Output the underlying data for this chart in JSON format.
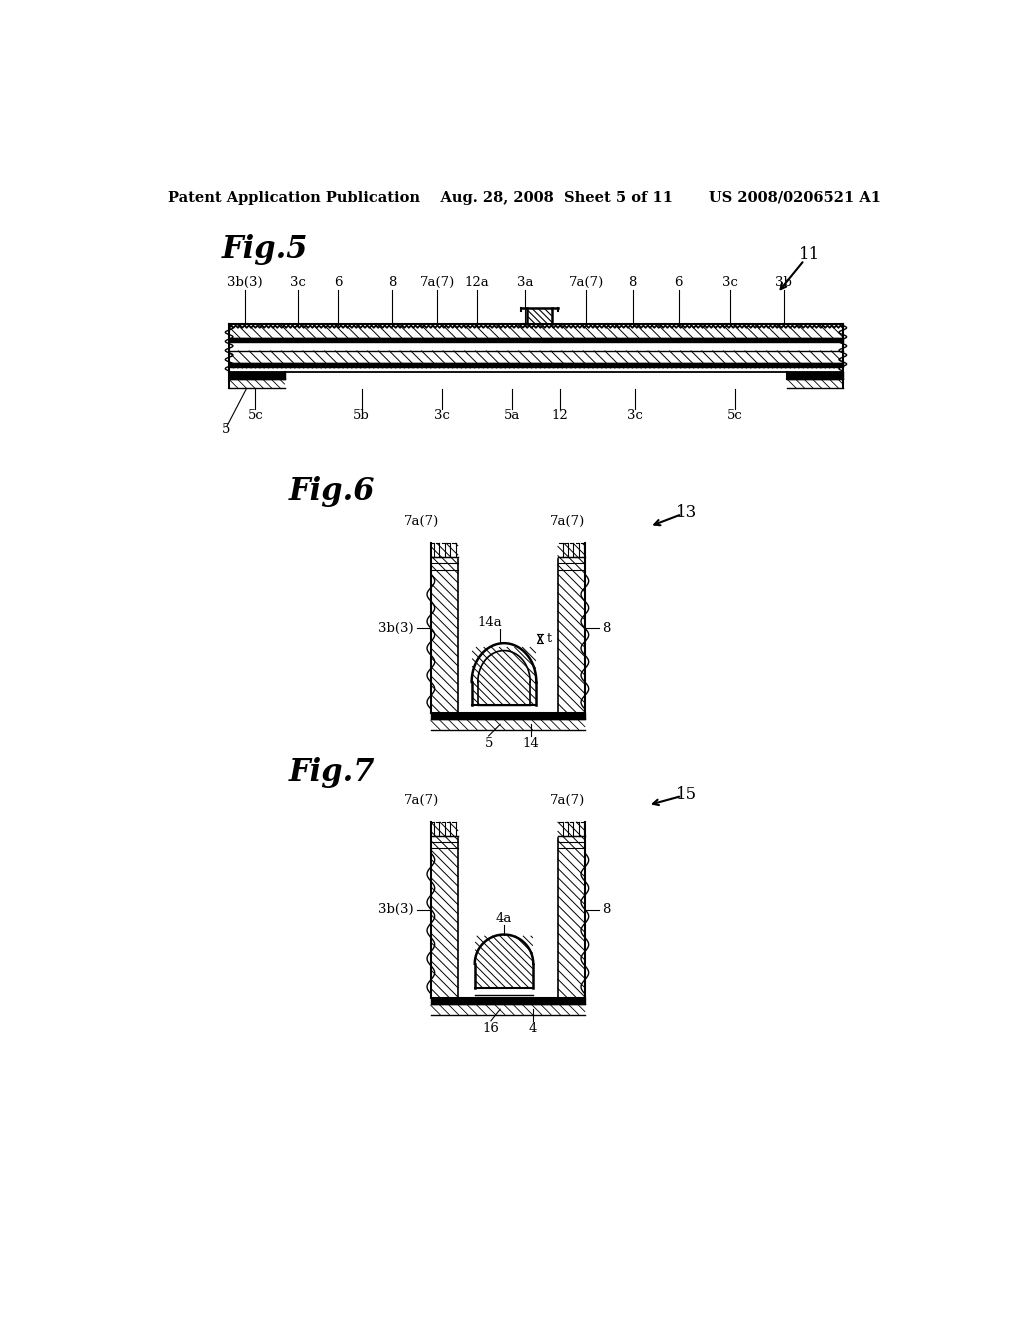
{
  "bg_color": "#ffffff",
  "header": "Patent Application Publication    Aug. 28, 2008  Sheet 5 of 11       US 2008/0206521 A1",
  "fig5_label": "Fig.5",
  "fig6_label": "Fig.6",
  "fig7_label": "Fig.7",
  "fig5_ref": "11",
  "fig6_ref": "13",
  "fig7_ref": "15",
  "fig5_top_labels": [
    [
      148,
      "3b(3)"
    ],
    [
      218,
      "3c"
    ],
    [
      270,
      "6"
    ],
    [
      340,
      "8"
    ],
    [
      398,
      "7a(7)"
    ],
    [
      450,
      "12a"
    ],
    [
      512,
      "3a"
    ],
    [
      592,
      "7a(7)"
    ],
    [
      652,
      "8"
    ],
    [
      712,
      "6"
    ],
    [
      778,
      "3c"
    ],
    [
      848,
      "3b"
    ]
  ],
  "fig5_bot_labels": [
    [
      162,
      "5c"
    ],
    [
      300,
      "5b"
    ],
    [
      405,
      "3c"
    ],
    [
      495,
      "5a"
    ],
    [
      558,
      "12"
    ],
    [
      655,
      "3c"
    ],
    [
      785,
      "5c"
    ]
  ]
}
